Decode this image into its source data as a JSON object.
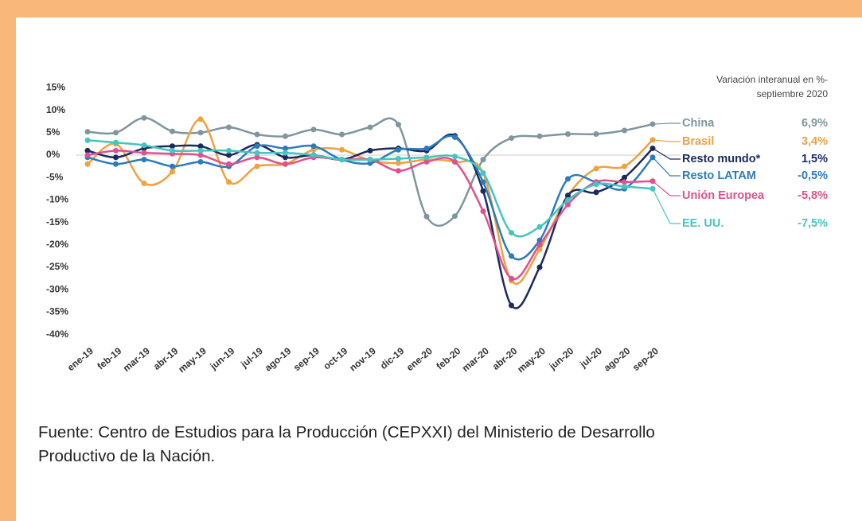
{
  "chart_data": {
    "type": "line",
    "note": [
      "Variación interanual en %-",
      "septiembre 2020"
    ],
    "categories": [
      "ene-19",
      "feb-19",
      "mar-19",
      "abr-19",
      "may-19",
      "jun-19",
      "jul-19",
      "ago-19",
      "sep-19",
      "oct-19",
      "nov-19",
      "dic-19",
      "ene-20",
      "feb-20",
      "mar-20",
      "abr-20",
      "may-20",
      "jun-20",
      "jul-20",
      "ago-20",
      "sep-20"
    ],
    "ylim": [
      -40,
      15
    ],
    "yticks": [
      {
        "value": 15,
        "label": "15%"
      },
      {
        "value": 10,
        "label": "10%"
      },
      {
        "value": 5,
        "label": "5%"
      },
      {
        "value": 0,
        "label": "0%"
      },
      {
        "value": -5,
        "label": "-5%"
      },
      {
        "value": -10,
        "label": "-10%"
      },
      {
        "value": -15,
        "label": "-15%"
      },
      {
        "value": -20,
        "label": "-20%"
      },
      {
        "value": -25,
        "label": "-25%"
      },
      {
        "value": -30,
        "label": "-30%"
      },
      {
        "value": -35,
        "label": "-35%"
      },
      {
        "value": -40,
        "label": "-40%"
      }
    ],
    "series": [
      {
        "name": "China",
        "color": "#7f959f",
        "values": [
          5.2,
          5,
          8.3,
          5.3,
          5,
          6.2,
          4.6,
          4.2,
          5.7,
          4.6,
          6.2,
          6.8,
          -13.7,
          -13.6,
          -1,
          3.8,
          4.2,
          4.7,
          4.7,
          5.5,
          6.9
        ],
        "value_labels": [
          null,
          null,
          null,
          null,
          null,
          null,
          null,
          null,
          null,
          null,
          null,
          null,
          null,
          null,
          null,
          null,
          null,
          null,
          null,
          null,
          "6,9%"
        ]
      },
      {
        "name": "Brasil",
        "color": "#f0a140",
        "values": [
          -2,
          2.5,
          -6.3,
          -3.7,
          8,
          -6,
          -2.5,
          -2,
          1.2,
          1.2,
          -1.2,
          -1.8,
          -1,
          -1.5,
          -4,
          -28,
          -21,
          -9,
          -3,
          -2.5,
          3.4
        ],
        "value_labels": [
          null,
          null,
          null,
          null,
          null,
          null,
          null,
          null,
          null,
          null,
          null,
          null,
          null,
          null,
          null,
          null,
          null,
          null,
          null,
          null,
          "3,4%"
        ]
      },
      {
        "name": "Resto mundo*",
        "color": "#1a2a5e",
        "values": [
          1,
          -0.5,
          1.5,
          2,
          2,
          0,
          2.3,
          -0.5,
          0,
          -1,
          1,
          1.5,
          1,
          4.3,
          -8,
          -33.5,
          -25,
          -9,
          -8.3,
          -5,
          1.5
        ],
        "value_labels": [
          null,
          null,
          null,
          null,
          null,
          null,
          null,
          null,
          null,
          null,
          null,
          null,
          null,
          null,
          null,
          null,
          null,
          null,
          null,
          null,
          "1,5%"
        ]
      },
      {
        "name": "Resto LATAM",
        "color": "#2b7bbf",
        "values": [
          -0.5,
          -2,
          -1,
          -2.5,
          -1.5,
          -2.5,
          2,
          1.5,
          2,
          -1,
          -1.8,
          1.2,
          1.5,
          4,
          -6,
          -22.5,
          -19,
          -5.3,
          -6,
          -7.5,
          -0.5
        ],
        "value_labels": [
          null,
          null,
          null,
          null,
          null,
          null,
          null,
          null,
          null,
          null,
          null,
          null,
          null,
          null,
          null,
          null,
          null,
          null,
          null,
          null,
          "-0,5%"
        ]
      },
      {
        "name": "Unión Europea",
        "color": "#e0508c",
        "values": [
          0,
          1,
          0.5,
          0.3,
          0,
          -2,
          -0.5,
          -2,
          -0.5,
          -1,
          -1,
          -3.5,
          -1.5,
          -1.5,
          -12.5,
          -27.5,
          -20,
          -11,
          -6,
          -6,
          -5.8
        ],
        "value_labels": [
          null,
          null,
          null,
          null,
          null,
          null,
          null,
          null,
          null,
          null,
          null,
          null,
          null,
          null,
          null,
          null,
          null,
          null,
          null,
          null,
          "-5,8%"
        ]
      },
      {
        "name": "EE. UU.",
        "color": "#46c4c0",
        "values": [
          3.3,
          2.8,
          2.2,
          1,
          1,
          1,
          0.5,
          0.5,
          0,
          -1,
          -1,
          -0.8,
          -0.5,
          -0.3,
          -4,
          -17.3,
          -16,
          -10,
          -6.5,
          -7,
          -7.5
        ],
        "value_labels": [
          null,
          null,
          null,
          null,
          null,
          null,
          null,
          null,
          null,
          null,
          null,
          null,
          null,
          null,
          null,
          null,
          null,
          null,
          null,
          null,
          "-7,5%"
        ]
      }
    ]
  },
  "source": [
    "Fuente: Centro de Estudios para la Producción (CEPXXI) del Ministerio de Desarrollo",
    "Productivo de la Nación."
  ]
}
